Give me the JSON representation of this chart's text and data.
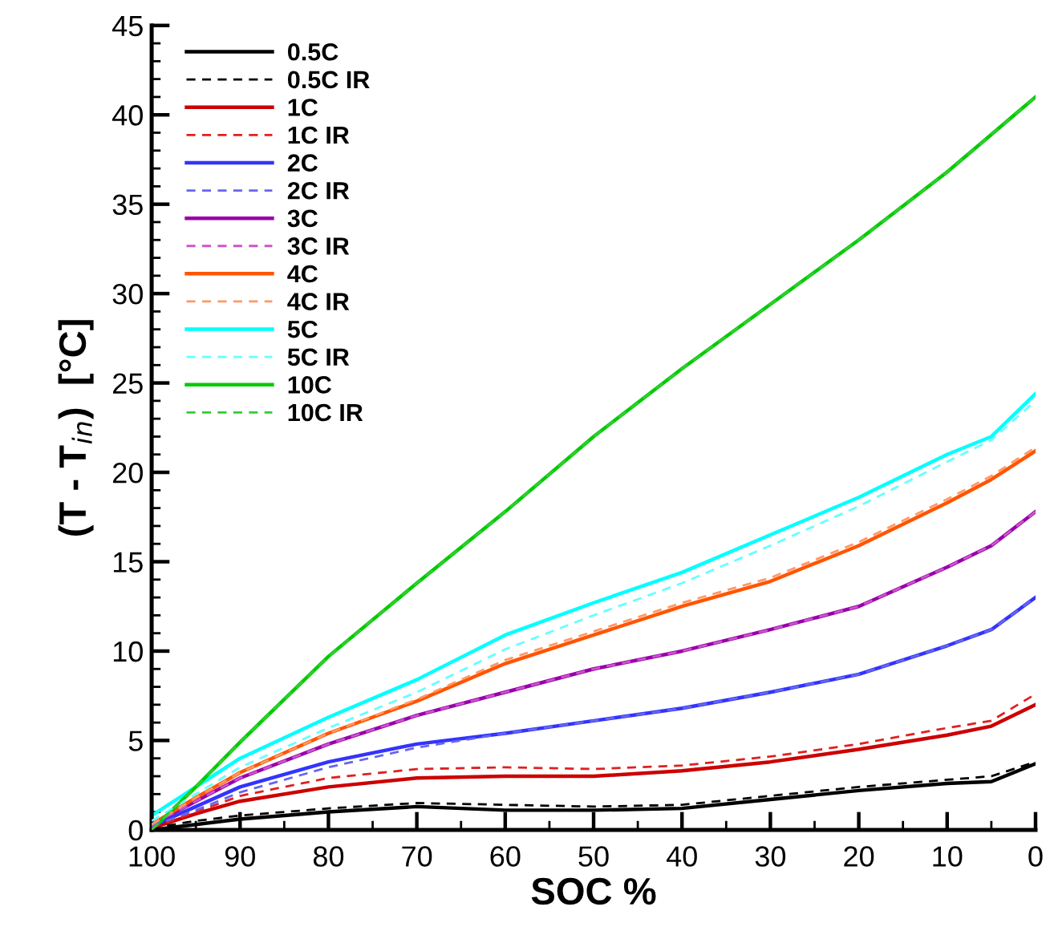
{
  "chart_data": {
    "type": "line",
    "xlabel": "SOC %",
    "ylabel": "(T - T$_{in}$)  [°C]",
    "x": [
      100,
      95,
      90,
      80,
      70,
      60,
      50,
      40,
      30,
      20,
      10,
      5,
      0
    ],
    "xlim": [
      100,
      0
    ],
    "xticks": [
      100,
      90,
      80,
      70,
      60,
      50,
      40,
      30,
      20,
      10,
      0
    ],
    "ylim": [
      0,
      45
    ],
    "yticks": [
      0,
      5,
      10,
      15,
      20,
      25,
      30,
      35,
      40,
      45
    ],
    "grid": false,
    "legend": "top left",
    "series": [
      {
        "name": "0.5C",
        "color": "#000000",
        "line_style": "solid",
        "values": [
          0,
          0.3,
          0.6,
          1.0,
          1.3,
          1.1,
          1.1,
          1.2,
          1.7,
          2.2,
          2.6,
          2.7,
          3.7
        ]
      },
      {
        "name": "0.5C IR",
        "color": "#000000",
        "line_style": "dashed",
        "values": [
          0.1,
          0.5,
          0.8,
          1.2,
          1.5,
          1.4,
          1.3,
          1.4,
          1.9,
          2.4,
          2.8,
          3.0,
          3.8
        ]
      },
      {
        "name": "1C",
        "color": "#cc0000",
        "line_style": "solid",
        "values": [
          0.1,
          0.9,
          1.6,
          2.4,
          2.9,
          3.0,
          3.0,
          3.3,
          3.8,
          4.5,
          5.3,
          5.8,
          7.0
        ]
      },
      {
        "name": "1C IR",
        "color": "#e02020",
        "line_style": "dashed",
        "values": [
          0.1,
          1.0,
          1.9,
          2.9,
          3.4,
          3.5,
          3.4,
          3.6,
          4.1,
          4.8,
          5.7,
          6.1,
          7.6
        ]
      },
      {
        "name": "2C",
        "color": "#3333ff",
        "line_style": "solid",
        "values": [
          0.2,
          1.3,
          2.4,
          3.8,
          4.8,
          5.4,
          6.1,
          6.8,
          7.7,
          8.7,
          10.3,
          11.2,
          13.0
        ]
      },
      {
        "name": "2C IR",
        "color": "#6666ee",
        "line_style": "dashed",
        "values": [
          0.2,
          1.1,
          2.1,
          3.5,
          4.6,
          5.4,
          6.1,
          6.8,
          7.7,
          8.7,
          10.3,
          11.2,
          13.0
        ]
      },
      {
        "name": "3C",
        "color": "#9900aa",
        "line_style": "solid",
        "values": [
          0.3,
          1.6,
          2.9,
          4.8,
          6.4,
          7.7,
          9.0,
          10.0,
          11.2,
          12.5,
          14.7,
          15.9,
          17.8
        ]
      },
      {
        "name": "3C IR",
        "color": "#cc55cc",
        "line_style": "dashed",
        "values": [
          0.3,
          1.6,
          2.9,
          4.8,
          6.4,
          7.7,
          9.0,
          10.0,
          11.2,
          12.5,
          14.7,
          15.9,
          17.8
        ]
      },
      {
        "name": "4C",
        "color": "#ff5500",
        "line_style": "solid",
        "values": [
          0.3,
          1.8,
          3.2,
          5.4,
          7.2,
          9.3,
          10.9,
          12.5,
          13.9,
          15.9,
          18.3,
          19.6,
          21.2
        ]
      },
      {
        "name": "4C IR",
        "color": "#ff9966",
        "line_style": "dashed",
        "values": [
          0.3,
          1.8,
          3.2,
          5.4,
          7.3,
          9.5,
          11.1,
          12.7,
          14.1,
          16.1,
          18.5,
          19.8,
          21.4
        ]
      },
      {
        "name": "5C",
        "color": "#00ffff",
        "line_style": "solid",
        "values": [
          0.8,
          2.4,
          4.0,
          6.3,
          8.4,
          10.9,
          12.7,
          14.4,
          16.5,
          18.6,
          21.0,
          22.0,
          24.4
        ]
      },
      {
        "name": "5C IR",
        "color": "#66ffff",
        "line_style": "dashed",
        "values": [
          0.5,
          2.0,
          3.5,
          5.7,
          7.7,
          10.1,
          12.0,
          13.8,
          15.9,
          18.1,
          20.6,
          21.8,
          24.0
        ]
      },
      {
        "name": "10C",
        "color": "#00cc00",
        "line_style": "solid",
        "values": [
          0,
          2.4,
          4.9,
          9.7,
          13.8,
          17.8,
          22.0,
          25.8,
          29.4,
          33.0,
          36.8,
          38.9,
          41.0
        ]
      },
      {
        "name": "10C IR",
        "color": "#33cc33",
        "line_style": "dashed",
        "values": [
          0,
          2.4,
          4.9,
          9.7,
          13.8,
          17.8,
          22.0,
          25.8,
          29.4,
          33.0,
          36.8,
          38.9,
          41.0
        ]
      }
    ]
  }
}
